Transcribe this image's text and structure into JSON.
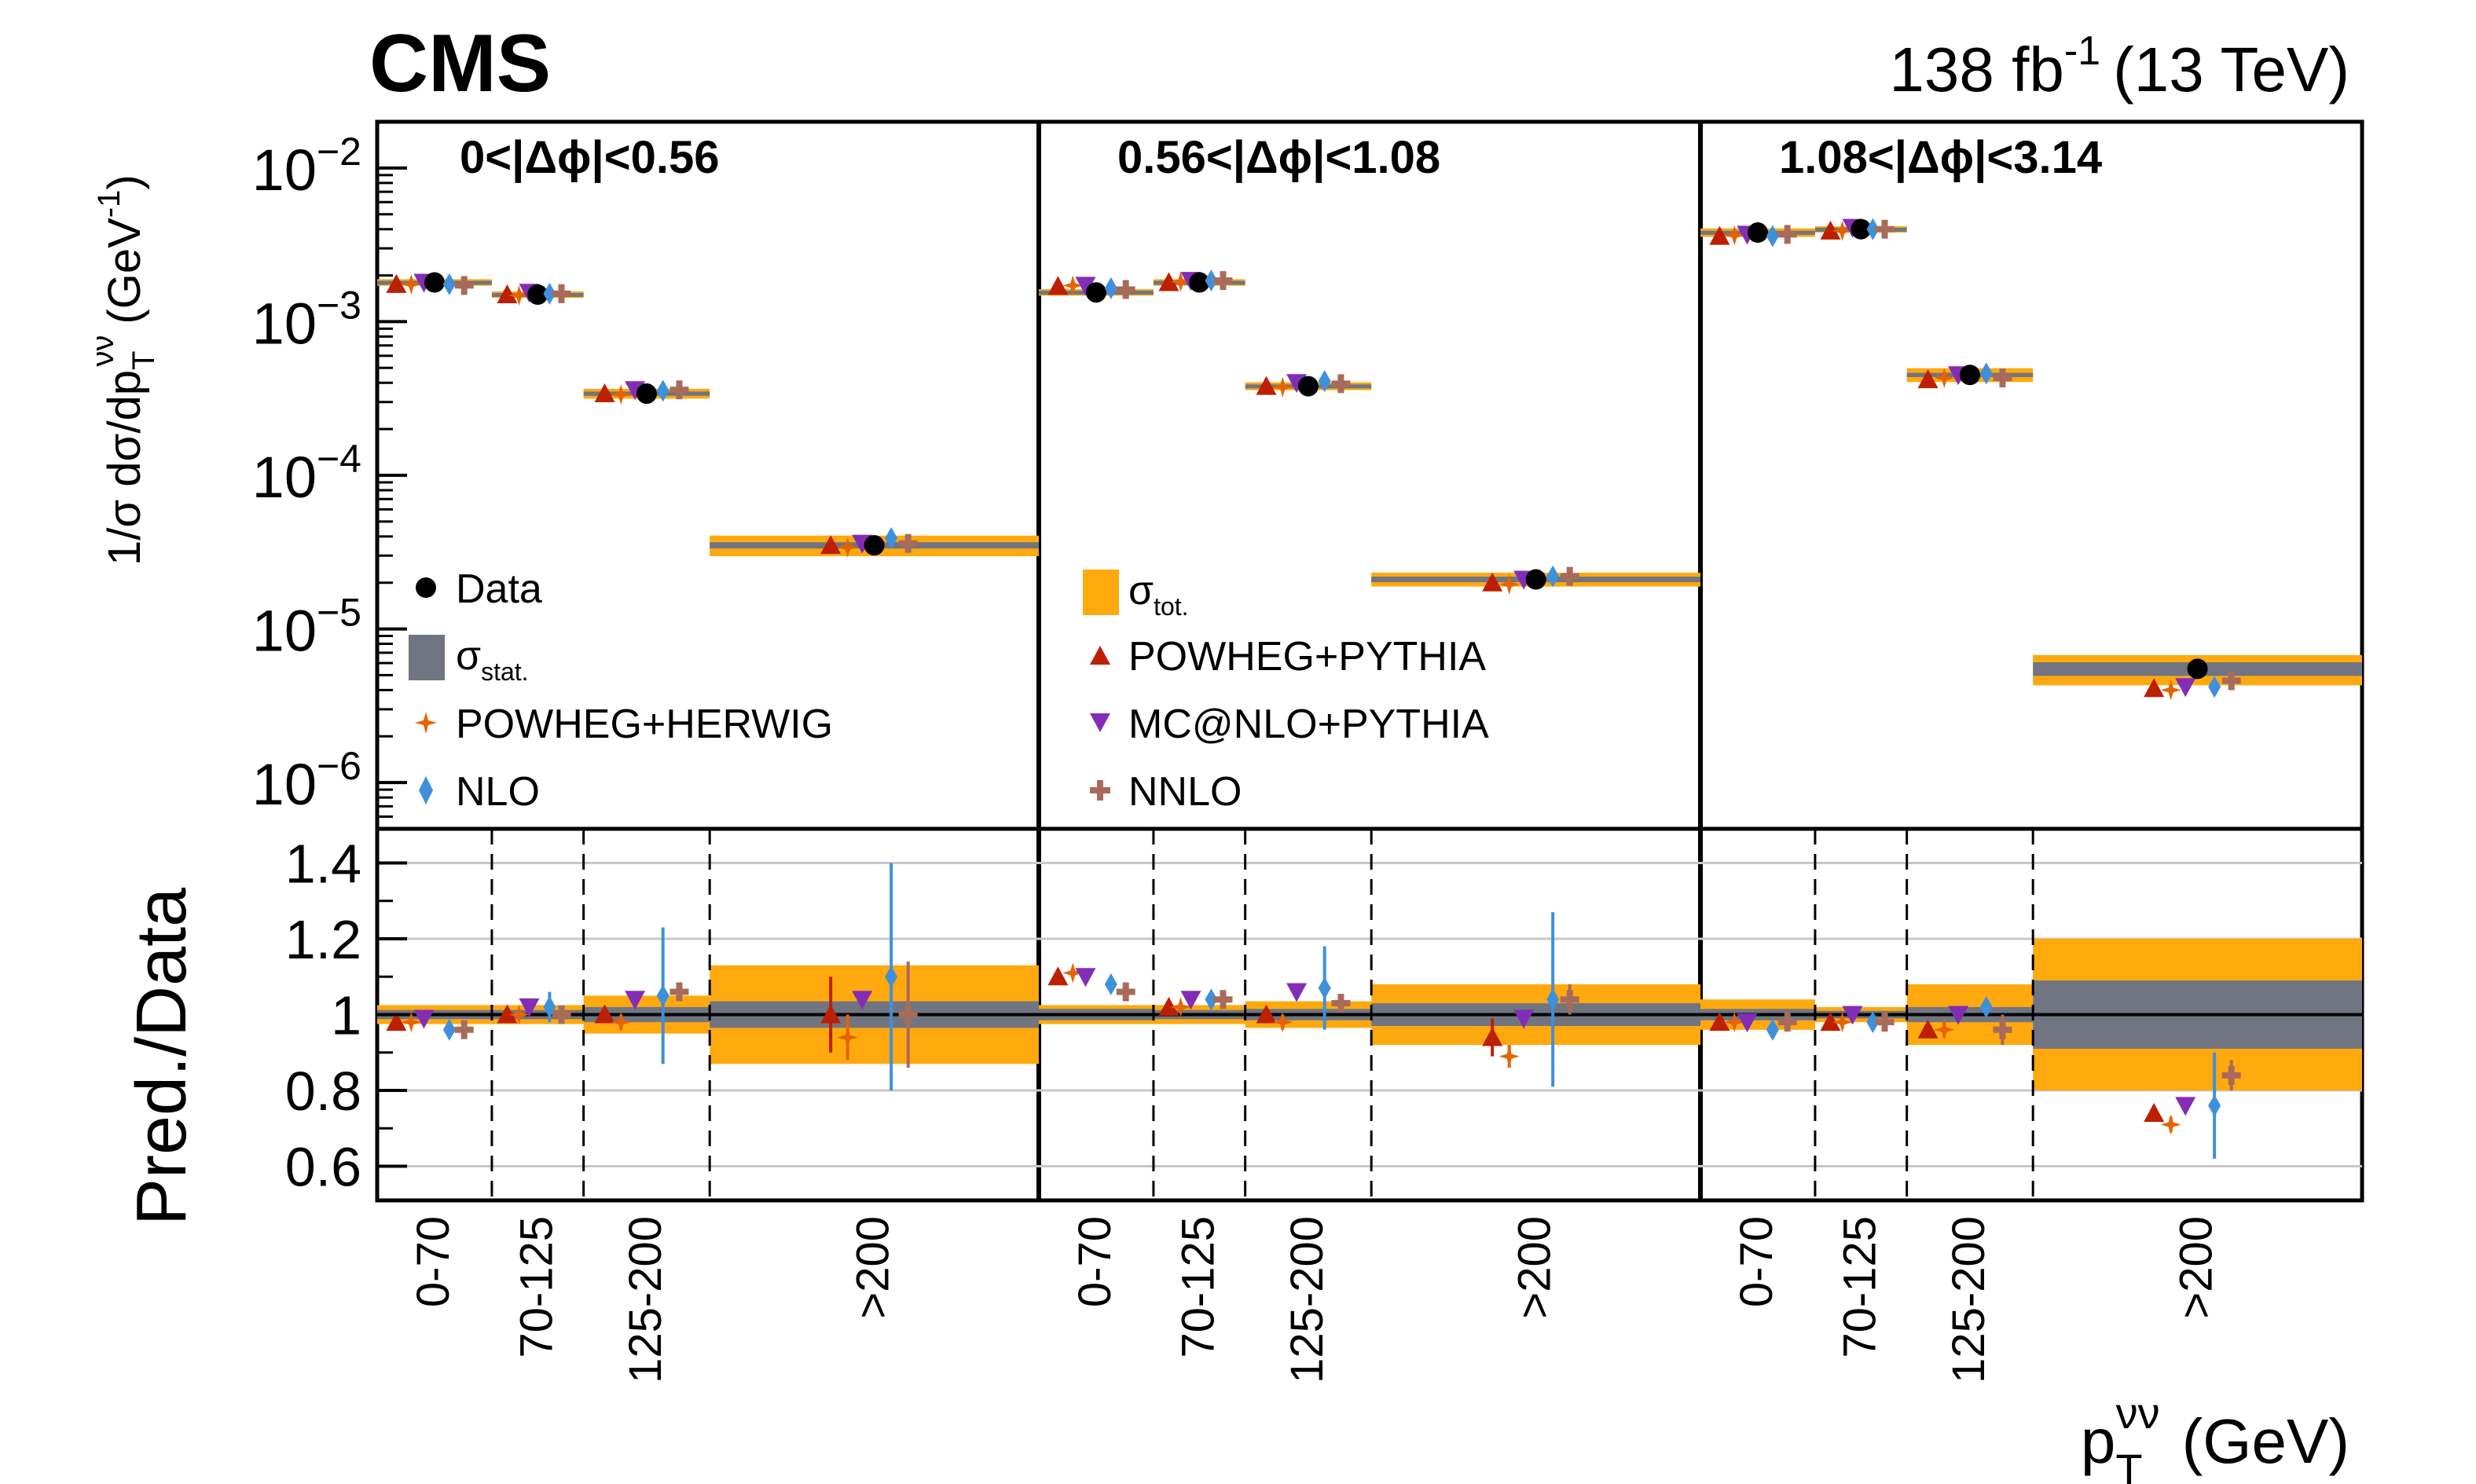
{
  "header": {
    "experiment": "CMS",
    "luminosity": "138 fb",
    "luminosity_exp": "-1",
    "energy": "(13 TeV)"
  },
  "axes": {
    "upper_ylabel_main": "1/σ dσ/dp",
    "upper_ylabel_sub": "T",
    "upper_ylabel_sup": "νν",
    "upper_ylabel_unit": "(GeV",
    "upper_ylabel_unit_exp": "-1",
    "upper_ylabel_close": ")",
    "upper_yticks": [
      {
        "base": "10",
        "exp": "−2"
      },
      {
        "base": "10",
        "exp": "−3"
      },
      {
        "base": "10",
        "exp": "−4"
      },
      {
        "base": "10",
        "exp": "−5"
      },
      {
        "base": "10",
        "exp": "−6"
      }
    ],
    "ratio_ylabel": "Pred./Data",
    "ratio_yticks": [
      "1.4",
      "1.2",
      "1",
      "0.8",
      "0.6"
    ],
    "xlabel_main": "p",
    "xlabel_sub": "T",
    "xlabel_sup": "νν",
    "xlabel_unit": "(GeV)"
  },
  "legend": {
    "data": "Data",
    "stat_main": "σ",
    "stat_sub": "stat.",
    "tot_main": "σ",
    "tot_sub": "tot.",
    "powheg_herwig": "POWHEG+HERWIG",
    "nlo": "NLO",
    "powheg_pythia": "POWHEG+PYTHIA",
    "mcnlo_pythia": "MC@NLO+PYTHIA",
    "nnlo": "NNLO"
  },
  "colors": {
    "tot": "#ffa90e",
    "stat": "#717581",
    "data": "#000000",
    "powheg_pythia": "#bd1f01",
    "powheg_herwig": "#e76300",
    "mcnlo_pythia": "#832db6",
    "nlo": "#3f90da",
    "nnlo": "#a96b59"
  },
  "chart_data": {
    "type": "scatter",
    "log_y_upper": true,
    "upper_ylim": [
      5e-07,
      0.02
    ],
    "ratio_ylim": [
      0.51,
      1.49
    ],
    "categories": [
      "0-70",
      "70-125",
      "125-200",
      ">200"
    ],
    "panels": [
      {
        "label": "0<|Δϕ|<0.56",
        "data": [
          0.0018,
          0.0015,
          0.00034,
          3.5e-05
        ],
        "tot_unc": [
          0.025,
          0.025,
          0.05,
          0.13
        ],
        "stat_unc": [
          0.012,
          0.012,
          0.02,
          0.035
        ],
        "models": {
          "powheg_pythia": {
            "pred": [
              0.00175,
              0.0015,
              0.00034,
              3.5e-05
            ],
            "ratio": [
              0.98,
              1.0,
              1.0,
              1.0
            ],
            "err": [
              0.01,
              0.01,
              0.02,
              0.1
            ]
          },
          "powheg_herwig": {
            "pred": [
              0.00175,
              0.00148,
              0.000335,
              3.4e-05
            ],
            "ratio": [
              0.98,
              1.0,
              0.98,
              0.94
            ],
            "err": [
              0.01,
              0.01,
              0.02,
              0.06
            ]
          },
          "mcnlo_pythia": {
            "pred": [
              0.0018,
              0.00155,
              0.00036,
              3.6e-05
            ],
            "ratio": [
              0.99,
              1.02,
              1.04,
              1.04
            ],
            "err": [
              0.01,
              0.01,
              0.01,
              0.01
            ]
          },
          "nlo": {
            "pred": [
              0.00175,
              0.00152,
              0.000355,
              3.9e-05
            ],
            "ratio": [
              0.96,
              1.02,
              1.05,
              1.1
            ],
            "err": [
              0.02,
              0.04,
              0.18,
              0.3
            ]
          },
          "nnlo": {
            "pred": [
              0.00172,
              0.00152,
              0.00036,
              3.6e-05
            ],
            "ratio": [
              0.96,
              1.0,
              1.06,
              1.0
            ],
            "err": [
              0.02,
              0.02,
              0.02,
              0.14
            ]
          }
        }
      },
      {
        "label": "0.56<|Δϕ|<1.08",
        "data": [
          0.00155,
          0.0018,
          0.00038,
          2.1e-05
        ],
        "tot_unc": [
          0.025,
          0.025,
          0.035,
          0.08
        ],
        "stat_unc": [
          0.015,
          0.012,
          0.015,
          0.03
        ],
        "models": {
          "powheg_pythia": {
            "pred": [
              0.0017,
              0.0018,
              0.00038,
              2e-05
            ],
            "ratio": [
              1.1,
              1.02,
              1.0,
              0.94
            ],
            "err": [
              0.01,
              0.01,
              0.02,
              0.05
            ]
          },
          "powheg_herwig": {
            "pred": [
              0.00172,
              0.00182,
              0.000375,
              1.95e-05
            ],
            "ratio": [
              1.11,
              1.02,
              0.98,
              0.89
            ],
            "err": [
              0.01,
              0.01,
              0.02,
              0.03
            ]
          },
          "mcnlo_pythia": {
            "pred": [
              0.00172,
              0.00185,
              0.0004,
              2.1e-05
            ],
            "ratio": [
              1.1,
              1.04,
              1.06,
              0.99
            ],
            "err": [
              0.01,
              0.01,
              0.01,
              0.01
            ]
          },
          "nlo": {
            "pred": [
              0.00165,
              0.00185,
              0.00041,
              2.2e-05
            ],
            "ratio": [
              1.08,
              1.04,
              1.07,
              1.04
            ],
            "err": [
              0.01,
              0.02,
              0.11,
              0.23
            ]
          },
          "nnlo": {
            "pred": [
              0.00162,
              0.00185,
              0.000395,
              2.2e-05
            ],
            "ratio": [
              1.06,
              1.04,
              1.03,
              1.04
            ],
            "err": [
              0.01,
              0.01,
              0.02,
              0.04
            ]
          }
        }
      },
      {
        "label": "1.08<|Δϕ|<3.14",
        "data": [
          0.0038,
          0.004,
          0.00045,
          5.5e-06
        ],
        "tot_unc": [
          0.04,
          0.02,
          0.08,
          0.2
        ],
        "stat_unc": [
          0.015,
          0.01,
          0.02,
          0.09
        ],
        "models": {
          "powheg_pythia": {
            "pred": [
              0.0036,
              0.0039,
              0.00042,
              4.1e-06
            ],
            "ratio": [
              0.98,
              0.98,
              0.96,
              0.74
            ],
            "err": [
              0.01,
              0.01,
              0.02,
              0.02
            ]
          },
          "powheg_herwig": {
            "pred": [
              0.00365,
              0.0039,
              0.00043,
              4e-06
            ],
            "ratio": [
              0.98,
              0.98,
              0.96,
              0.71
            ],
            "err": [
              0.01,
              0.01,
              0.02,
              0.02
            ]
          },
          "mcnlo_pythia": {
            "pred": [
              0.0037,
              0.0041,
              0.00045,
              4.2e-06
            ],
            "ratio": [
              0.98,
              1.0,
              1.0,
              0.76
            ],
            "err": [
              0.01,
              0.01,
              0.01,
              0.01
            ]
          },
          "nlo": {
            "pred": [
              0.0036,
              0.004,
              0.00046,
              4.2e-06
            ],
            "ratio": [
              0.96,
              0.98,
              1.02,
              0.76
            ],
            "err": [
              0.02,
              0.02,
              0.02,
              0.14
            ]
          },
          "nnlo": {
            "pred": [
              0.0037,
              0.004,
              0.00043,
              4.6e-06
            ],
            "ratio": [
              0.98,
              0.98,
              0.96,
              0.84
            ],
            "err": [
              0.02,
              0.02,
              0.04,
              0.04
            ]
          }
        }
      }
    ]
  }
}
